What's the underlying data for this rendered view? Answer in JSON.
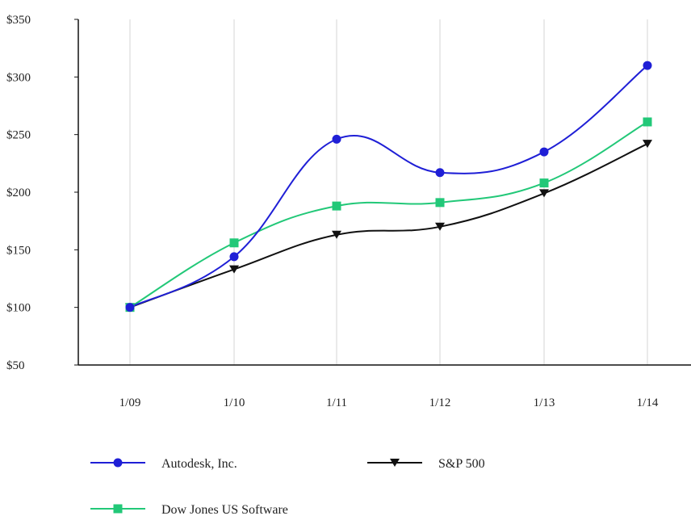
{
  "chart_data": {
    "type": "line",
    "categories": [
      "1/09",
      "1/10",
      "1/11",
      "1/12",
      "1/13",
      "1/14"
    ],
    "series": [
      {
        "name": "Autodesk, Inc.",
        "values": [
          100,
          144,
          246,
          217,
          235,
          310
        ],
        "color": "#1f1fd6",
        "marker": "circle"
      },
      {
        "name": "S&P 500",
        "values": [
          100,
          133,
          163,
          170,
          199,
          242
        ],
        "color": "#111111",
        "marker": "triangle-down"
      },
      {
        "name": "Dow Jones US Software",
        "values": [
          100,
          156,
          188,
          191,
          208,
          261
        ],
        "color": "#22c878",
        "marker": "square"
      }
    ],
    "y_ticks": [
      "$50",
      "$100",
      "$150",
      "$200",
      "$250",
      "$300",
      "$350"
    ],
    "ylim": [
      50,
      350
    ],
    "grid": "vertical",
    "legend_position": "bottom-left",
    "title": "",
    "xlabel": "",
    "ylabel": ""
  }
}
